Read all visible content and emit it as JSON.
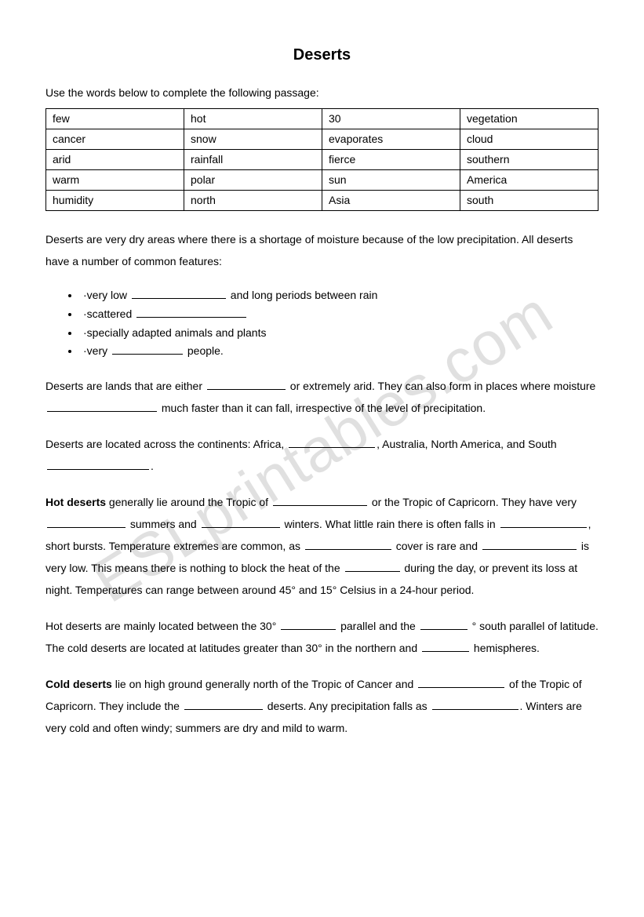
{
  "title": "Deserts",
  "instruction": "Use the words below to complete the following passage:",
  "wordbank": [
    [
      "few",
      "hot",
      "30",
      "vegetation"
    ],
    [
      "cancer",
      "snow",
      "evaporates",
      "cloud"
    ],
    [
      "arid",
      "rainfall",
      "fierce",
      "southern"
    ],
    [
      "warm",
      "polar",
      "sun",
      "America"
    ],
    [
      "humidity",
      "north",
      "Asia",
      "south"
    ]
  ],
  "intro": "Deserts are very dry areas where there is a shortage of moisture because of the low precipitation. All deserts have a number of common features:",
  "bullets": {
    "b1a": "·very low ",
    "b1b": " and long periods between rain",
    "b2a": "·scattered ",
    "b3a": "·specially adapted animals and plants",
    "b4a": "·very ",
    "b4b": " people."
  },
  "p2a": "Deserts are lands that are either ",
  "p2b": " or extremely arid. They can also form in places where moisture ",
  "p2c": " much faster than it can fall, irrespective of the level of precipitation.",
  "p3a": "Deserts are located across the continents: Africa, ",
  "p3b": ", Australia, North America, and South ",
  "p3c": ".",
  "p4label": "Hot deserts",
  "p4a": " generally lie around the Tropic of ",
  "p4b": " or the Tropic of Capricorn. They have very ",
  "p4c": " summers and ",
  "p4d": " winters. What little rain there is often falls in ",
  "p4e": ", short bursts. Temperature extremes are common, as ",
  "p4f": " cover is rare and ",
  "p4g": " is very low. This means there is nothing to block the heat of the ",
  "p4h": " during the day, or prevent its loss at night. Temperatures can range between around 45° and 15° Celsius in a 24-hour period.",
  "p5a": "Hot deserts are mainly located between the 30° ",
  "p5b": " parallel and the ",
  "p5c": " ° south parallel of latitude. The cold deserts are located at latitudes greater than 30° in the northern and ",
  "p5d": " hemispheres.",
  "p6label": "Cold deserts",
  "p6a": " lie on high ground generally north of the Tropic of Cancer and ",
  "p6b": " of the Tropic of Capricorn. They include the ",
  "p6c": " deserts. Any precipitation falls as ",
  "p6d": ". Winters are very cold and often windy; summers are dry and mild to warm.",
  "watermark": "ESLprintables.com"
}
